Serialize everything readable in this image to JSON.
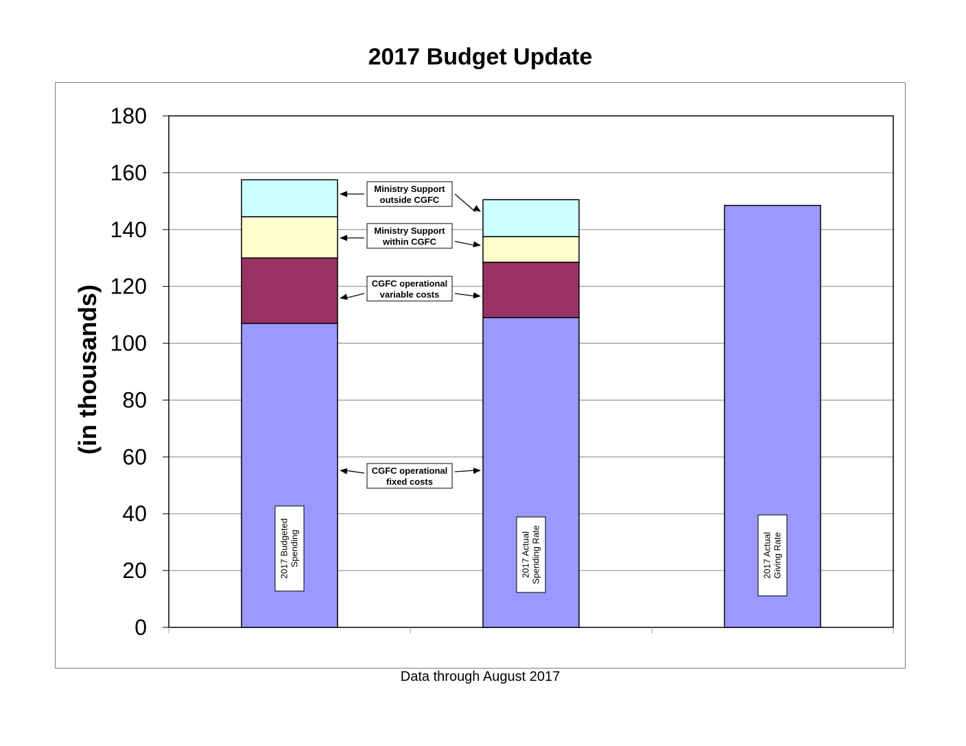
{
  "chart_data": {
    "type": "bar",
    "stacked": true,
    "title": "2017 Budget Update",
    "ylabel": "(in thousands)",
    "xlabel": "",
    "footnote": "Data through August 2017",
    "ylim": [
      0,
      180
    ],
    "yticks": [
      0,
      20,
      40,
      60,
      80,
      100,
      120,
      140,
      160,
      180
    ],
    "grid": true,
    "categories": [
      "2017  Budgeted Spending",
      "2017 Actual Spending Rate",
      "2017 Actual Giving Rate"
    ],
    "category_labels": [
      [
        "2017  Budgeted",
        "Spending"
      ],
      [
        "2017 Actual",
        "Spending Rate"
      ],
      [
        "2017 Actual",
        "Giving Rate"
      ]
    ],
    "series": [
      {
        "name": "CGFC operational fixed costs",
        "color": "#9999ff",
        "values": [
          107,
          109,
          148.5
        ]
      },
      {
        "name": "CGFC operational variable costs",
        "color": "#993366",
        "values": [
          23,
          19.5,
          0
        ]
      },
      {
        "name": "Ministry Support within  CGFC",
        "color": "#ffffcc",
        "values": [
          14.5,
          9,
          0
        ]
      },
      {
        "name": "Ministry Support outside CGFC",
        "color": "#ccffff",
        "values": [
          13,
          13,
          0
        ]
      }
    ],
    "annotations": [
      {
        "lines": [
          "Ministry Support",
          "outside CGFC"
        ]
      },
      {
        "lines": [
          "Ministry Support",
          "within  CGFC"
        ]
      },
      {
        "lines": [
          "CGFC operational",
          "variable costs"
        ]
      },
      {
        "lines": [
          "CGFC operational",
          "fixed costs"
        ]
      }
    ]
  }
}
